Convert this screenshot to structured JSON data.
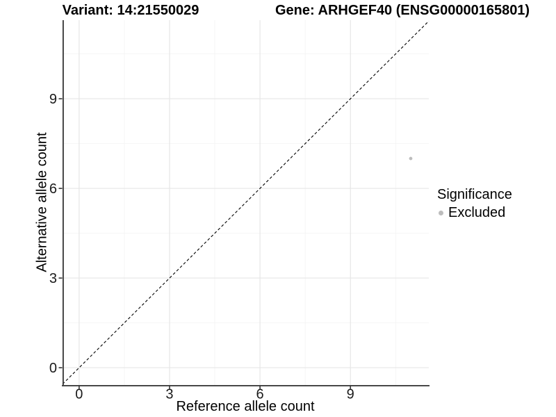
{
  "titles": {
    "variant": "Variant: 14:21550029",
    "gene": "Gene: ARHGEF40 (ENSG00000165801)"
  },
  "legend": {
    "title": "Significance",
    "items": [
      {
        "label": "Excluded",
        "color": "#bdbdbd"
      }
    ]
  },
  "colors": {
    "background": "#ffffff",
    "axis_line": "#3c3c3c",
    "tick_mark": "#333333",
    "tick_label": "#1a1a1a",
    "major_grid": "#e6e6e6",
    "minor_grid": "#f4f4f4",
    "reference_line": "#000000",
    "point": "#bdbdbd"
  },
  "chart_data": {
    "type": "scatter",
    "title": "Variant: 14:21550029 — Gene: ARHGEF40 (ENSG00000165801)",
    "xlabel": "Reference allele count",
    "ylabel": "Alternative allele count",
    "xlim": [
      -0.55,
      11.6
    ],
    "ylim": [
      -0.58,
      11.63
    ],
    "xticks": [
      0,
      3,
      6,
      9
    ],
    "yticks": [
      0,
      3,
      6,
      9
    ],
    "minor_xticks": [
      1.5,
      4.5,
      7.5,
      10.5
    ],
    "minor_yticks": [
      1.5,
      4.5,
      7.5,
      10.5
    ],
    "grid": "major-and-minor",
    "legend_position": "right",
    "legend_title": "Significance",
    "series": [
      {
        "name": "Excluded",
        "color": "#bdbdbd",
        "points": [
          {
            "x": 11,
            "y": 7
          }
        ]
      }
    ],
    "reference_line": {
      "description": "identity line y = x",
      "slope": 1,
      "intercept": 0,
      "style": "dashed",
      "color": "#000000"
    }
  }
}
